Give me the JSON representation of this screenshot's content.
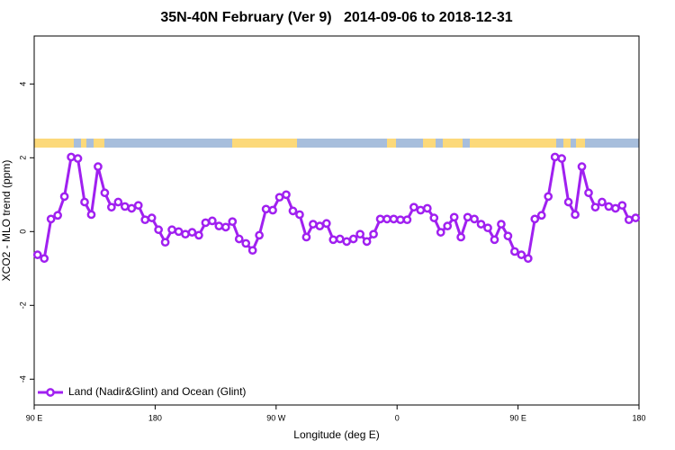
{
  "chart_data": {
    "type": "line",
    "title": "35N-40N February (Ver 9)   2014-09-06 to 2018-12-31",
    "x_label": "Longitude (deg E)",
    "y_label": "XCO2 - MLO trend (ppm)",
    "x": [
      92.5,
      97.5,
      102.5,
      107.5,
      112.5,
      117.5,
      122.5,
      127.5,
      132.5,
      137.5,
      142.5,
      147.5,
      152.5,
      157.5,
      162.5,
      167.5,
      172.5,
      177.5,
      182.5,
      187.5,
      192.5,
      197.5,
      202.5,
      207.5,
      212.5,
      217.5,
      222.5,
      227.5,
      232.5,
      237.5,
      242.5,
      247.5,
      252.5,
      257.5,
      262.5,
      267.5,
      272.5,
      277.5,
      282.5,
      287.5,
      292.5,
      297.5,
      302.5,
      307.5,
      312.5,
      317.5,
      322.5,
      327.5,
      332.5,
      337.5,
      342.5,
      347.5,
      352.5,
      357.5,
      362.5,
      367.5,
      372.5,
      377.5,
      382.5,
      387.5,
      392.5,
      397.5,
      402.5,
      407.5,
      412.5,
      417.5,
      422.5,
      427.5,
      432.5,
      437.5,
      442.5,
      447.5,
      452.5,
      457.5,
      462.5,
      467.5,
      472.5,
      477.5,
      482.5,
      487.5,
      492.5,
      497.5,
      502.5,
      507.5,
      512.5,
      517.5,
      522.5,
      527.5,
      532.5,
      537.5
    ],
    "series": [
      {
        "name": "Land (Nadir&Glint) and Ocean (Glint)",
        "color": "#a020f0",
        "values": [
          -0.63,
          -0.73,
          0.34,
          0.44,
          0.95,
          2.02,
          1.98,
          0.8,
          0.46,
          1.76,
          1.05,
          0.66,
          0.8,
          0.68,
          0.63,
          0.71,
          0.32,
          0.37,
          0.05,
          -0.29,
          0.05,
          0.0,
          -0.07,
          -0.02,
          -0.1,
          0.24,
          0.29,
          0.15,
          0.12,
          0.27,
          -0.2,
          -0.32,
          -0.51,
          -0.1,
          0.61,
          0.58,
          0.93,
          1.0,
          0.56,
          0.46,
          -0.15,
          0.2,
          0.15,
          0.22,
          -0.22,
          -0.2,
          -0.27,
          -0.2,
          -0.07,
          -0.27,
          -0.07,
          0.34,
          0.34,
          0.34,
          0.32,
          0.32,
          0.66,
          0.58,
          0.63,
          0.37,
          -0.02,
          0.15,
          0.39,
          -0.15,
          0.39,
          0.34,
          0.2,
          0.1,
          -0.22,
          0.2,
          -0.12,
          -0.54,
          -0.63,
          -0.73,
          0.34,
          0.44,
          0.95,
          2.02,
          1.98,
          0.8,
          0.46,
          1.76,
          1.05,
          0.66,
          0.8,
          0.68,
          0.63,
          0.71,
          0.32,
          0.37
        ]
      }
    ],
    "xlim": [
      90,
      540
    ],
    "xticks": [
      {
        "value": 90,
        "label": "90 E"
      },
      180,
      {
        "value": 270,
        "label": "90 W"
      },
      {
        "value": 360,
        "label": "0"
      },
      {
        "value": 450,
        "label": "90 E"
      },
      {
        "value": 540,
        "label": "180"
      }
    ],
    "ylim": [
      -4.7,
      5.3
    ],
    "yticks": [
      -4,
      -2,
      0,
      2,
      4
    ],
    "grid": false,
    "legend": "bottom-left"
  }
}
